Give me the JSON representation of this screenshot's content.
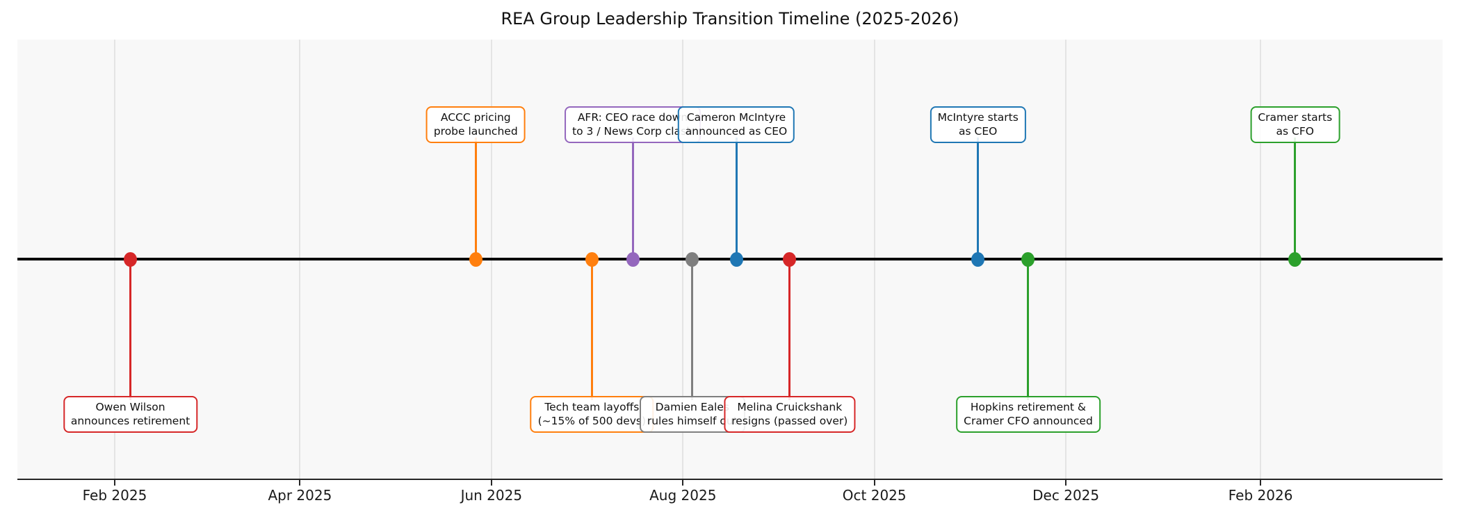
{
  "title": "REA Group Leadership Transition Timeline (2025-2026)",
  "chart_data": {
    "type": "scatter",
    "subtype": "timeline",
    "title": "REA Group Leadership Transition Timeline (2025-2026)",
    "xlim": [
      "2025-01-01",
      "2026-03-31"
    ],
    "grid": true,
    "baseline_color": "#0a0a0a",
    "plot_background": "#f8f8f8",
    "x_ticks": [
      {
        "date": "2025-02-01",
        "label": "Feb 2025"
      },
      {
        "date": "2025-04-01",
        "label": "Apr 2025"
      },
      {
        "date": "2025-06-01",
        "label": "Jun 2025"
      },
      {
        "date": "2025-08-01",
        "label": "Aug 2025"
      },
      {
        "date": "2025-10-01",
        "label": "Oct 2025"
      },
      {
        "date": "2025-12-01",
        "label": "Dec 2025"
      },
      {
        "date": "2026-02-01",
        "label": "Feb 2026"
      }
    ],
    "events": [
      {
        "id": "owen-wilson-retirement",
        "date": "2025-02-06",
        "label_lines": [
          "Owen Wilson",
          "announces retirement"
        ],
        "color": "#d62728",
        "side": "below"
      },
      {
        "id": "accc-pricing-probe",
        "date": "2025-05-27",
        "label_lines": [
          "ACCC pricing",
          "probe launched"
        ],
        "color": "#ff7f0e",
        "side": "above"
      },
      {
        "id": "tech-team-layoffs",
        "date": "2025-07-03",
        "label_lines": [
          "Tech team layoffs",
          "(~15% of 500 devs)"
        ],
        "color": "#ff7f0e",
        "side": "below"
      },
      {
        "id": "afr-ceo-race",
        "date": "2025-07-16",
        "label_lines": [
          "AFR: CEO race down",
          "to 3 / News Corp clash"
        ],
        "color": "#9467bd",
        "side": "above"
      },
      {
        "id": "damien-eales-out",
        "date": "2025-08-04",
        "label_lines": [
          "Damien Eales",
          "rules himself out"
        ],
        "color": "#7f7f7f",
        "side": "below"
      },
      {
        "id": "mcintyre-announced",
        "date": "2025-08-18",
        "label_lines": [
          "Cameron McIntyre",
          "announced as CEO"
        ],
        "color": "#1f77b4",
        "side": "above"
      },
      {
        "id": "cruickshank-resigns",
        "date": "2025-09-04",
        "label_lines": [
          "Melina Cruickshank",
          "resigns (passed over)"
        ],
        "color": "#d62728",
        "side": "below"
      },
      {
        "id": "mcintyre-starts",
        "date": "2025-11-03",
        "label_lines": [
          "McIntyre starts",
          "as CEO"
        ],
        "color": "#1f77b4",
        "side": "above"
      },
      {
        "id": "hopkins-cramer-announced",
        "date": "2025-11-19",
        "label_lines": [
          "Hopkins retirement &",
          "Cramer CFO announced"
        ],
        "color": "#2ca02c",
        "side": "below"
      },
      {
        "id": "cramer-starts",
        "date": "2026-02-12",
        "label_lines": [
          "Cramer starts",
          "as CFO"
        ],
        "color": "#2ca02c",
        "side": "above"
      }
    ]
  }
}
